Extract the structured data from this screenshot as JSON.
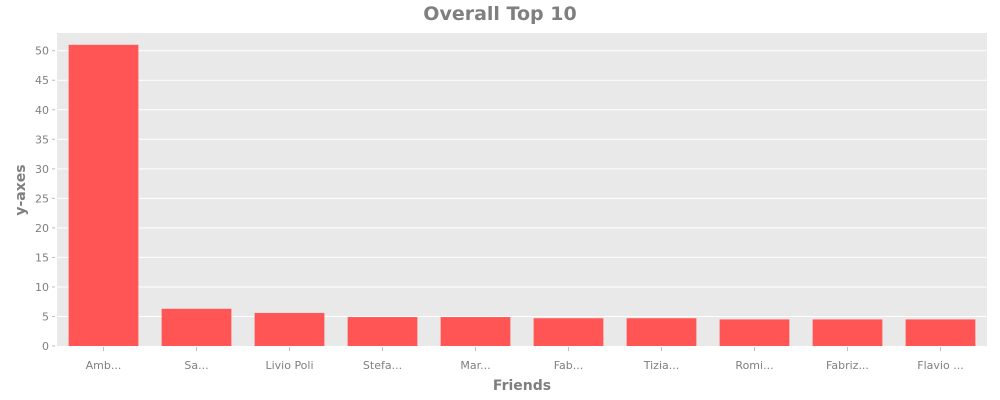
{
  "chart_data": {
    "type": "bar",
    "title": "Overall Top 10",
    "xlabel": "Friends",
    "ylabel": "y-axes",
    "categories": [
      "Amb...",
      "Sa...",
      "Livio Poli",
      "Stefa...",
      "Mar...",
      "Fab...",
      "Tizia...",
      "Romi...",
      "Fabriz...",
      "Flavio ..."
    ],
    "values": [
      51,
      6.3,
      5.6,
      4.9,
      4.9,
      4.7,
      4.7,
      4.5,
      4.5,
      4.5
    ],
    "yticks": [
      0,
      5,
      10,
      15,
      20,
      25,
      30,
      35,
      40,
      45,
      50
    ],
    "ylim": [
      0,
      53
    ],
    "grid": true,
    "colors": {
      "bar": "#ff5555",
      "plot_bg": "#e9e9e9",
      "grid": "#ffffff",
      "text": "#7f7f7f"
    }
  }
}
